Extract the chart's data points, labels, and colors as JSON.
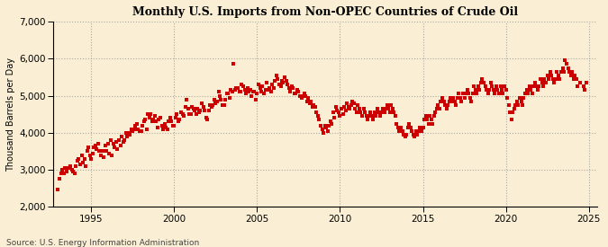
{
  "title": "Monthly U.S. Imports from Non-OPEC Countries of Crude Oil",
  "ylabel": "Thousand Barrels per Day",
  "source": "Source: U.S. Energy Information Administration",
  "background_color": "#faefd4",
  "marker_color": "#cc0000",
  "ylim": [
    2000,
    7000
  ],
  "yticks": [
    2000,
    3000,
    4000,
    5000,
    6000,
    7000
  ],
  "xlim_start": 1992.7,
  "xlim_end": 2025.5,
  "xticks": [
    1995,
    2000,
    2005,
    2010,
    2015,
    2020,
    2025
  ],
  "data": [
    [
      1993.0,
      2470
    ],
    [
      1993.08,
      2750
    ],
    [
      1993.17,
      2900
    ],
    [
      1993.25,
      3000
    ],
    [
      1993.33,
      2900
    ],
    [
      1993.42,
      3050
    ],
    [
      1993.5,
      2950
    ],
    [
      1993.58,
      3050
    ],
    [
      1993.67,
      3050
    ],
    [
      1993.75,
      3100
    ],
    [
      1993.83,
      3000
    ],
    [
      1993.92,
      2950
    ],
    [
      1994.0,
      2900
    ],
    [
      1994.08,
      3100
    ],
    [
      1994.17,
      3250
    ],
    [
      1994.25,
      3300
    ],
    [
      1994.33,
      3150
    ],
    [
      1994.42,
      3400
    ],
    [
      1994.5,
      3200
    ],
    [
      1994.58,
      3300
    ],
    [
      1994.67,
      3100
    ],
    [
      1994.75,
      3500
    ],
    [
      1994.83,
      3600
    ],
    [
      1994.92,
      3400
    ],
    [
      1995.0,
      3300
    ],
    [
      1995.08,
      3450
    ],
    [
      1995.17,
      3600
    ],
    [
      1995.25,
      3650
    ],
    [
      1995.33,
      3550
    ],
    [
      1995.42,
      3700
    ],
    [
      1995.5,
      3500
    ],
    [
      1995.58,
      3400
    ],
    [
      1995.67,
      3500
    ],
    [
      1995.75,
      3350
    ],
    [
      1995.83,
      3650
    ],
    [
      1995.92,
      3500
    ],
    [
      1996.0,
      3700
    ],
    [
      1996.08,
      3450
    ],
    [
      1996.17,
      3800
    ],
    [
      1996.25,
      3400
    ],
    [
      1996.33,
      3700
    ],
    [
      1996.42,
      3600
    ],
    [
      1996.5,
      3750
    ],
    [
      1996.58,
      3550
    ],
    [
      1996.67,
      3800
    ],
    [
      1996.75,
      3650
    ],
    [
      1996.83,
      3900
    ],
    [
      1996.92,
      3750
    ],
    [
      1997.0,
      3800
    ],
    [
      1997.08,
      4000
    ],
    [
      1997.17,
      3900
    ],
    [
      1997.25,
      4000
    ],
    [
      1997.33,
      3950
    ],
    [
      1997.42,
      4100
    ],
    [
      1997.5,
      4050
    ],
    [
      1997.58,
      4100
    ],
    [
      1997.67,
      4200
    ],
    [
      1997.75,
      4250
    ],
    [
      1997.83,
      4100
    ],
    [
      1997.92,
      4050
    ],
    [
      1998.0,
      4050
    ],
    [
      1998.08,
      4200
    ],
    [
      1998.17,
      4300
    ],
    [
      1998.25,
      4350
    ],
    [
      1998.33,
      4100
    ],
    [
      1998.42,
      4500
    ],
    [
      1998.5,
      4400
    ],
    [
      1998.58,
      4500
    ],
    [
      1998.67,
      4300
    ],
    [
      1998.75,
      4350
    ],
    [
      1998.83,
      4450
    ],
    [
      1998.92,
      4300
    ],
    [
      1999.0,
      4150
    ],
    [
      1999.08,
      4350
    ],
    [
      1999.17,
      4400
    ],
    [
      1999.25,
      4200
    ],
    [
      1999.33,
      4100
    ],
    [
      1999.42,
      4250
    ],
    [
      1999.5,
      4150
    ],
    [
      1999.58,
      4100
    ],
    [
      1999.67,
      4300
    ],
    [
      1999.75,
      4400
    ],
    [
      1999.83,
      4300
    ],
    [
      1999.92,
      4200
    ],
    [
      2000.0,
      4200
    ],
    [
      2000.08,
      4400
    ],
    [
      2000.17,
      4500
    ],
    [
      2000.25,
      4300
    ],
    [
      2000.33,
      4350
    ],
    [
      2000.42,
      4550
    ],
    [
      2000.5,
      4500
    ],
    [
      2000.58,
      4450
    ],
    [
      2000.67,
      4700
    ],
    [
      2000.75,
      4900
    ],
    [
      2000.83,
      4650
    ],
    [
      2000.92,
      4500
    ],
    [
      2001.0,
      4500
    ],
    [
      2001.08,
      4700
    ],
    [
      2001.17,
      4650
    ],
    [
      2001.25,
      4600
    ],
    [
      2001.33,
      4500
    ],
    [
      2001.42,
      4650
    ],
    [
      2001.5,
      4550
    ],
    [
      2001.58,
      4600
    ],
    [
      2001.67,
      4800
    ],
    [
      2001.75,
      4700
    ],
    [
      2001.83,
      4600
    ],
    [
      2001.92,
      4400
    ],
    [
      2002.0,
      4350
    ],
    [
      2002.08,
      4600
    ],
    [
      2002.17,
      4750
    ],
    [
      2002.25,
      4700
    ],
    [
      2002.33,
      4750
    ],
    [
      2002.42,
      4900
    ],
    [
      2002.5,
      4800
    ],
    [
      2002.58,
      4850
    ],
    [
      2002.67,
      5100
    ],
    [
      2002.75,
      5000
    ],
    [
      2002.83,
      4900
    ],
    [
      2002.92,
      4750
    ],
    [
      2003.0,
      4750
    ],
    [
      2003.08,
      4900
    ],
    [
      2003.17,
      5050
    ],
    [
      2003.25,
      5050
    ],
    [
      2003.33,
      4950
    ],
    [
      2003.42,
      5150
    ],
    [
      2003.5,
      5100
    ],
    [
      2003.58,
      5850
    ],
    [
      2003.67,
      5150
    ],
    [
      2003.75,
      5200
    ],
    [
      2003.83,
      5200
    ],
    [
      2003.92,
      5100
    ],
    [
      2004.0,
      5100
    ],
    [
      2004.08,
      5300
    ],
    [
      2004.17,
      5250
    ],
    [
      2004.25,
      5150
    ],
    [
      2004.33,
      5050
    ],
    [
      2004.42,
      5200
    ],
    [
      2004.5,
      5100
    ],
    [
      2004.58,
      5150
    ],
    [
      2004.67,
      5000
    ],
    [
      2004.75,
      5100
    ],
    [
      2004.83,
      5100
    ],
    [
      2004.92,
      4900
    ],
    [
      2005.0,
      5050
    ],
    [
      2005.08,
      5300
    ],
    [
      2005.17,
      5200
    ],
    [
      2005.25,
      5100
    ],
    [
      2005.33,
      5250
    ],
    [
      2005.42,
      5050
    ],
    [
      2005.5,
      5150
    ],
    [
      2005.58,
      5350
    ],
    [
      2005.67,
      5150
    ],
    [
      2005.75,
      5200
    ],
    [
      2005.83,
      5100
    ],
    [
      2005.92,
      5300
    ],
    [
      2006.0,
      5200
    ],
    [
      2006.08,
      5400
    ],
    [
      2006.17,
      5550
    ],
    [
      2006.25,
      5450
    ],
    [
      2006.33,
      5300
    ],
    [
      2006.42,
      5250
    ],
    [
      2006.5,
      5400
    ],
    [
      2006.58,
      5350
    ],
    [
      2006.67,
      5500
    ],
    [
      2006.75,
      5400
    ],
    [
      2006.83,
      5300
    ],
    [
      2006.92,
      5200
    ],
    [
      2007.0,
      5100
    ],
    [
      2007.08,
      5250
    ],
    [
      2007.17,
      5200
    ],
    [
      2007.25,
      5050
    ],
    [
      2007.33,
      5050
    ],
    [
      2007.42,
      5150
    ],
    [
      2007.5,
      5100
    ],
    [
      2007.58,
      5000
    ],
    [
      2007.67,
      4950
    ],
    [
      2007.75,
      5000
    ],
    [
      2007.83,
      5050
    ],
    [
      2007.92,
      5000
    ],
    [
      2008.0,
      4850
    ],
    [
      2008.08,
      4950
    ],
    [
      2008.17,
      4800
    ],
    [
      2008.25,
      4850
    ],
    [
      2008.33,
      4700
    ],
    [
      2008.42,
      4750
    ],
    [
      2008.5,
      4700
    ],
    [
      2008.58,
      4550
    ],
    [
      2008.67,
      4450
    ],
    [
      2008.75,
      4350
    ],
    [
      2008.83,
      4200
    ],
    [
      2008.92,
      4100
    ],
    [
      2009.0,
      4000
    ],
    [
      2009.08,
      4200
    ],
    [
      2009.17,
      4150
    ],
    [
      2009.25,
      4050
    ],
    [
      2009.33,
      4200
    ],
    [
      2009.42,
      4300
    ],
    [
      2009.5,
      4250
    ],
    [
      2009.58,
      4550
    ],
    [
      2009.67,
      4400
    ],
    [
      2009.75,
      4700
    ],
    [
      2009.83,
      4600
    ],
    [
      2009.92,
      4550
    ],
    [
      2010.0,
      4450
    ],
    [
      2010.08,
      4650
    ],
    [
      2010.17,
      4500
    ],
    [
      2010.25,
      4700
    ],
    [
      2010.33,
      4600
    ],
    [
      2010.42,
      4800
    ],
    [
      2010.5,
      4700
    ],
    [
      2010.58,
      4650
    ],
    [
      2010.67,
      4750
    ],
    [
      2010.75,
      4850
    ],
    [
      2010.83,
      4800
    ],
    [
      2010.92,
      4650
    ],
    [
      2011.0,
      4550
    ],
    [
      2011.08,
      4750
    ],
    [
      2011.17,
      4650
    ],
    [
      2011.25,
      4550
    ],
    [
      2011.33,
      4450
    ],
    [
      2011.42,
      4650
    ],
    [
      2011.5,
      4550
    ],
    [
      2011.58,
      4450
    ],
    [
      2011.67,
      4350
    ],
    [
      2011.75,
      4450
    ],
    [
      2011.83,
      4550
    ],
    [
      2011.92,
      4450
    ],
    [
      2012.0,
      4350
    ],
    [
      2012.08,
      4550
    ],
    [
      2012.17,
      4450
    ],
    [
      2012.25,
      4650
    ],
    [
      2012.33,
      4550
    ],
    [
      2012.42,
      4450
    ],
    [
      2012.5,
      4550
    ],
    [
      2012.58,
      4650
    ],
    [
      2012.67,
      4550
    ],
    [
      2012.75,
      4650
    ],
    [
      2012.83,
      4750
    ],
    [
      2012.92,
      4650
    ],
    [
      2013.0,
      4550
    ],
    [
      2013.08,
      4750
    ],
    [
      2013.17,
      4650
    ],
    [
      2013.25,
      4550
    ],
    [
      2013.33,
      4450
    ],
    [
      2013.42,
      4250
    ],
    [
      2013.5,
      4150
    ],
    [
      2013.58,
      4050
    ],
    [
      2013.67,
      4150
    ],
    [
      2013.75,
      4050
    ],
    [
      2013.83,
      3950
    ],
    [
      2013.92,
      3900
    ],
    [
      2014.0,
      3950
    ],
    [
      2014.08,
      4150
    ],
    [
      2014.17,
      4250
    ],
    [
      2014.25,
      4150
    ],
    [
      2014.33,
      4050
    ],
    [
      2014.42,
      3950
    ],
    [
      2014.5,
      3900
    ],
    [
      2014.58,
      4050
    ],
    [
      2014.67,
      3950
    ],
    [
      2014.75,
      4050
    ],
    [
      2014.83,
      4150
    ],
    [
      2014.92,
      4050
    ],
    [
      2015.0,
      4150
    ],
    [
      2015.08,
      4350
    ],
    [
      2015.17,
      4450
    ],
    [
      2015.25,
      4350
    ],
    [
      2015.33,
      4250
    ],
    [
      2015.42,
      4450
    ],
    [
      2015.5,
      4350
    ],
    [
      2015.58,
      4250
    ],
    [
      2015.67,
      4450
    ],
    [
      2015.75,
      4550
    ],
    [
      2015.83,
      4650
    ],
    [
      2015.92,
      4750
    ],
    [
      2016.0,
      4650
    ],
    [
      2016.08,
      4850
    ],
    [
      2016.17,
      4950
    ],
    [
      2016.25,
      4850
    ],
    [
      2016.33,
      4750
    ],
    [
      2016.42,
      4650
    ],
    [
      2016.5,
      4750
    ],
    [
      2016.58,
      4850
    ],
    [
      2016.67,
      4950
    ],
    [
      2016.75,
      4850
    ],
    [
      2016.83,
      4950
    ],
    [
      2016.92,
      4850
    ],
    [
      2017.0,
      4750
    ],
    [
      2017.08,
      4950
    ],
    [
      2017.17,
      5050
    ],
    [
      2017.25,
      4950
    ],
    [
      2017.33,
      4850
    ],
    [
      2017.42,
      5050
    ],
    [
      2017.5,
      4950
    ],
    [
      2017.58,
      5050
    ],
    [
      2017.67,
      5150
    ],
    [
      2017.75,
      5050
    ],
    [
      2017.83,
      4950
    ],
    [
      2017.92,
      4850
    ],
    [
      2018.0,
      5050
    ],
    [
      2018.08,
      5250
    ],
    [
      2018.17,
      5150
    ],
    [
      2018.25,
      5050
    ],
    [
      2018.33,
      5250
    ],
    [
      2018.42,
      5150
    ],
    [
      2018.5,
      5350
    ],
    [
      2018.58,
      5450
    ],
    [
      2018.67,
      5350
    ],
    [
      2018.75,
      5250
    ],
    [
      2018.83,
      5150
    ],
    [
      2018.92,
      5050
    ],
    [
      2019.0,
      5150
    ],
    [
      2019.08,
      5350
    ],
    [
      2019.17,
      5250
    ],
    [
      2019.25,
      5150
    ],
    [
      2019.33,
      5050
    ],
    [
      2019.42,
      5250
    ],
    [
      2019.5,
      5150
    ],
    [
      2019.58,
      5050
    ],
    [
      2019.67,
      5250
    ],
    [
      2019.75,
      5150
    ],
    [
      2019.83,
      5050
    ],
    [
      2019.92,
      5250
    ],
    [
      2020.0,
      5150
    ],
    [
      2020.08,
      4950
    ],
    [
      2020.17,
      4750
    ],
    [
      2020.25,
      4550
    ],
    [
      2020.33,
      4350
    ],
    [
      2020.42,
      4550
    ],
    [
      2020.5,
      4650
    ],
    [
      2020.58,
      4750
    ],
    [
      2020.67,
      4850
    ],
    [
      2020.75,
      4750
    ],
    [
      2020.83,
      4950
    ],
    [
      2020.92,
      4850
    ],
    [
      2021.0,
      4750
    ],
    [
      2021.08,
      4950
    ],
    [
      2021.17,
      5050
    ],
    [
      2021.25,
      5150
    ],
    [
      2021.33,
      5050
    ],
    [
      2021.42,
      5250
    ],
    [
      2021.5,
      5150
    ],
    [
      2021.58,
      5050
    ],
    [
      2021.67,
      5250
    ],
    [
      2021.75,
      5350
    ],
    [
      2021.83,
      5250
    ],
    [
      2021.92,
      5150
    ],
    [
      2022.0,
      5250
    ],
    [
      2022.08,
      5450
    ],
    [
      2022.17,
      5350
    ],
    [
      2022.25,
      5250
    ],
    [
      2022.33,
      5450
    ],
    [
      2022.42,
      5350
    ],
    [
      2022.5,
      5550
    ],
    [
      2022.58,
      5450
    ],
    [
      2022.67,
      5650
    ],
    [
      2022.75,
      5550
    ],
    [
      2022.83,
      5450
    ],
    [
      2022.92,
      5350
    ],
    [
      2023.0,
      5450
    ],
    [
      2023.08,
      5650
    ],
    [
      2023.17,
      5550
    ],
    [
      2023.25,
      5450
    ],
    [
      2023.33,
      5650
    ],
    [
      2023.42,
      5750
    ],
    [
      2023.5,
      5650
    ],
    [
      2023.58,
      5950
    ],
    [
      2023.67,
      5850
    ],
    [
      2023.75,
      5750
    ],
    [
      2023.83,
      5650
    ],
    [
      2023.92,
      5550
    ],
    [
      2024.0,
      5650
    ],
    [
      2024.08,
      5450
    ],
    [
      2024.17,
      5550
    ],
    [
      2024.25,
      5450
    ],
    [
      2024.33,
      5250
    ],
    [
      2024.5,
      5350
    ],
    [
      2024.67,
      5250
    ],
    [
      2024.75,
      5150
    ],
    [
      2024.83,
      5350
    ]
  ]
}
